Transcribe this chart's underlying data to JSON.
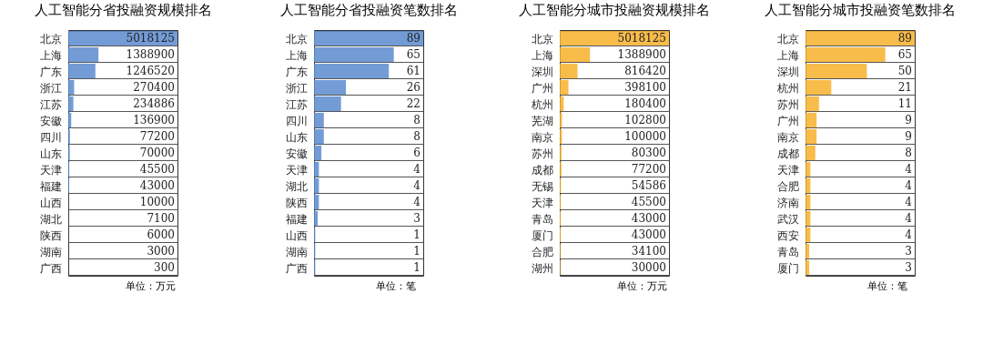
{
  "chart_data": [
    {
      "type": "bar",
      "orientation": "horizontal",
      "title": "人工智能分省投融资规模排名",
      "categories": [
        "北京",
        "上海",
        "广东",
        "浙江",
        "江苏",
        "安徽",
        "四川",
        "山东",
        "天津",
        "福建",
        "山西",
        "湖北",
        "陕西",
        "湖南",
        "广西"
      ],
      "values": [
        5018125,
        1388900,
        1246520,
        270400,
        234886,
        136900,
        77200,
        70000,
        45500,
        43000,
        10000,
        7100,
        6000,
        3000,
        300
      ],
      "color": "#5b8bd0",
      "xlim": [
        0,
        5018125
      ],
      "data_labels": true,
      "tick_labels": "y",
      "grid": "y",
      "annotations": [
        "单位：万元"
      ]
    },
    {
      "type": "bar",
      "orientation": "horizontal",
      "title": "人工智能分省投融资笔数排名",
      "categories": [
        "北京",
        "上海",
        "广东",
        "浙江",
        "江苏",
        "四川",
        "山东",
        "安徽",
        "天津",
        "湖北",
        "陕西",
        "福建",
        "山西",
        "湖南",
        "广西"
      ],
      "values": [
        89,
        65,
        61,
        26,
        22,
        8,
        8,
        6,
        4,
        4,
        4,
        3,
        1,
        1,
        1
      ],
      "color": "#5b8bd0",
      "xlim": [
        0,
        89
      ],
      "data_labels": true,
      "tick_labels": "y",
      "grid": "y",
      "annotations": [
        "单位：笔"
      ]
    },
    {
      "type": "bar",
      "orientation": "horizontal",
      "title": "人工智能分城市投融资规模排名",
      "categories": [
        "北京",
        "上海",
        "深圳",
        "广州",
        "杭州",
        "芜湖",
        "南京",
        "苏州",
        "成都",
        "无锡",
        "天津",
        "青岛",
        "厦门",
        "合肥",
        "湖州"
      ],
      "values": [
        5018125,
        1388900,
        816420,
        398100,
        180400,
        102800,
        100000,
        80300,
        77200,
        54586,
        45500,
        43000,
        43000,
        34100,
        30000
      ],
      "color": "#f7b02b",
      "xlim": [
        0,
        5018125
      ],
      "data_labels": true,
      "tick_labels": "y",
      "grid": "y",
      "annotations": [
        "单位：万元"
      ]
    },
    {
      "type": "bar",
      "orientation": "horizontal",
      "title": "人工智能分城市投融资笔数排名",
      "categories": [
        "北京",
        "上海",
        "深圳",
        "杭州",
        "苏州",
        "广州",
        "南京",
        "成都",
        "天津",
        "合肥",
        "济南",
        "武汉",
        "西安",
        "青岛",
        "厦门"
      ],
      "values": [
        89,
        65,
        50,
        21,
        11,
        9,
        9,
        8,
        4,
        4,
        4,
        4,
        4,
        3,
        3
      ],
      "color": "#f7b02b",
      "xlim": [
        0,
        89
      ],
      "data_labels": true,
      "tick_labels": "y",
      "grid": "y",
      "annotations": [
        "单位：笔"
      ]
    }
  ]
}
